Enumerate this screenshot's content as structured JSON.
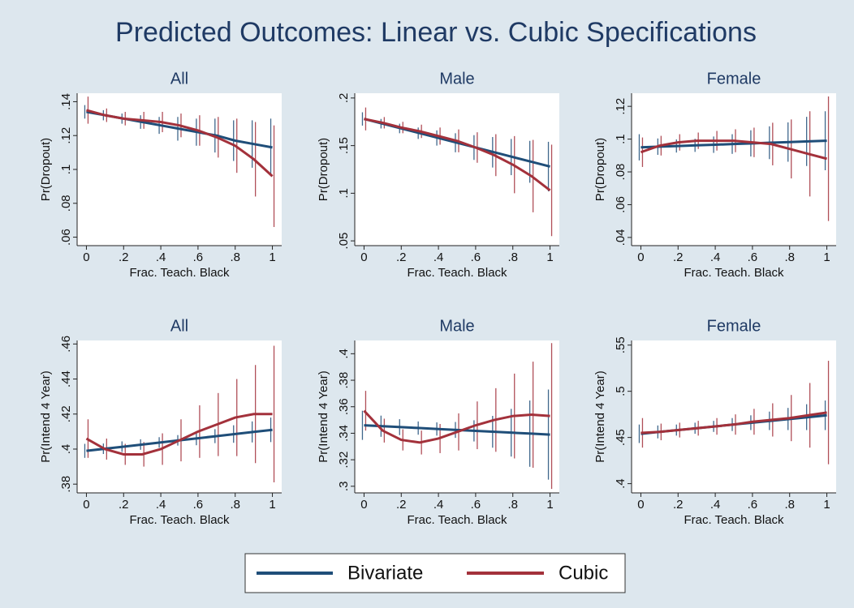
{
  "title": "Predicted Outcomes: Linear vs. Cubic Specifications",
  "chart_data": [
    {
      "type": "line",
      "title": "All",
      "xlabel": "Frac. Teach. Black",
      "ylabel": "Pr(Dropout)",
      "x": [
        0,
        0.1,
        0.2,
        0.3,
        0.4,
        0.5,
        0.6,
        0.7,
        0.8,
        0.9,
        1
      ],
      "xlim": [
        -0.05,
        1.05
      ],
      "xticks": [
        0,
        {
          "value": 0.2,
          "label": ".2"
        },
        {
          "value": 0.4,
          "label": ".4"
        },
        {
          "value": 0.6,
          "label": ".6"
        },
        {
          "value": 0.8,
          "label": ".8"
        },
        1
      ],
      "ylim": [
        0.055,
        0.145
      ],
      "yticks": [
        {
          "value": 0.06,
          "label": ".06"
        },
        {
          "value": 0.08,
          "label": ".08"
        },
        {
          "value": 0.1,
          "label": ".1"
        },
        {
          "value": 0.12,
          "label": ".12"
        },
        {
          "value": 0.14,
          "label": ".14"
        }
      ],
      "series": [
        {
          "name": "Bivariate",
          "color": "#1f4e79",
          "values": [
            0.134,
            0.132,
            0.13,
            0.128,
            0.126,
            0.124,
            0.122,
            0.12,
            0.117,
            0.115,
            0.113
          ],
          "errors": [
            0.004,
            0.003,
            0.003,
            0.004,
            0.005,
            0.007,
            0.008,
            0.01,
            0.012,
            0.014,
            0.017
          ]
        },
        {
          "name": "Cubic",
          "color": "#a3313b",
          "values": [
            0.135,
            0.132,
            0.13,
            0.129,
            0.128,
            0.126,
            0.123,
            0.119,
            0.114,
            0.106,
            0.096
          ],
          "errors": [
            0.008,
            0.004,
            0.004,
            0.005,
            0.006,
            0.007,
            0.009,
            0.012,
            0.016,
            0.022,
            0.03
          ]
        }
      ]
    },
    {
      "type": "line",
      "title": "Male",
      "xlabel": "Frac. Teach. Black",
      "ylabel": "Pr(Dropout)",
      "x": [
        0,
        0.1,
        0.2,
        0.3,
        0.4,
        0.5,
        0.6,
        0.7,
        0.8,
        0.9,
        1
      ],
      "xlim": [
        -0.05,
        1.05
      ],
      "xticks": [
        0,
        {
          "value": 0.2,
          "label": ".2"
        },
        {
          "value": 0.4,
          "label": ".4"
        },
        {
          "value": 0.6,
          "label": ".6"
        },
        {
          "value": 0.8,
          "label": ".8"
        },
        1
      ],
      "ylim": [
        0.045,
        0.205
      ],
      "yticks": [
        {
          "value": 0.05,
          "label": ".05"
        },
        {
          "value": 0.1,
          "label": ".1"
        },
        {
          "value": 0.15,
          "label": ".15"
        },
        {
          "value": 0.2,
          "label": ".2"
        }
      ],
      "series": [
        {
          "name": "Bivariate",
          "color": "#1f4e79",
          "values": [
            0.178,
            0.173,
            0.168,
            0.163,
            0.158,
            0.153,
            0.148,
            0.143,
            0.138,
            0.133,
            0.128
          ],
          "errors": [
            0.007,
            0.005,
            0.005,
            0.006,
            0.008,
            0.01,
            0.013,
            0.016,
            0.019,
            0.022,
            0.026
          ]
        },
        {
          "name": "Cubic",
          "color": "#a3313b",
          "values": [
            0.178,
            0.174,
            0.169,
            0.165,
            0.16,
            0.155,
            0.148,
            0.14,
            0.13,
            0.118,
            0.103
          ],
          "errors": [
            0.012,
            0.006,
            0.006,
            0.007,
            0.009,
            0.012,
            0.016,
            0.022,
            0.03,
            0.038,
            0.048
          ]
        }
      ]
    },
    {
      "type": "line",
      "title": "Female",
      "xlabel": "Frac. Teach. Black",
      "ylabel": "Pr(Dropout)",
      "x": [
        0,
        0.1,
        0.2,
        0.3,
        0.4,
        0.5,
        0.6,
        0.7,
        0.8,
        0.9,
        1
      ],
      "xlim": [
        -0.05,
        1.05
      ],
      "xticks": [
        0,
        {
          "value": 0.2,
          "label": ".2"
        },
        {
          "value": 0.4,
          "label": ".4"
        },
        {
          "value": 0.6,
          "label": ".6"
        },
        {
          "value": 0.8,
          "label": ".8"
        },
        1
      ],
      "ylim": [
        0.035,
        0.128
      ],
      "yticks": [
        {
          "value": 0.04,
          "label": ".04"
        },
        {
          "value": 0.06,
          "label": ".06"
        },
        {
          "value": 0.08,
          "label": ".08"
        },
        {
          "value": 0.1,
          "label": ".1"
        },
        {
          "value": 0.12,
          "label": ".12"
        }
      ],
      "series": [
        {
          "name": "Bivariate",
          "color": "#1f4e79",
          "values": [
            0.095,
            0.0954,
            0.0958,
            0.0962,
            0.0966,
            0.097,
            0.0974,
            0.0978,
            0.0982,
            0.0986,
            0.099
          ],
          "errors": [
            0.008,
            0.005,
            0.004,
            0.004,
            0.005,
            0.006,
            0.008,
            0.01,
            0.012,
            0.015,
            0.018
          ]
        },
        {
          "name": "Cubic",
          "color": "#a3313b",
          "values": [
            0.092,
            0.096,
            0.098,
            0.099,
            0.099,
            0.099,
            0.098,
            0.097,
            0.094,
            0.091,
            0.088
          ],
          "errors": [
            0.009,
            0.006,
            0.005,
            0.005,
            0.006,
            0.007,
            0.009,
            0.013,
            0.018,
            0.026,
            0.038
          ]
        }
      ]
    },
    {
      "type": "line",
      "title": "All",
      "xlabel": "Frac. Teach. Black",
      "ylabel": "Pr(Intend 4 Year)",
      "x": [
        0,
        0.1,
        0.2,
        0.3,
        0.4,
        0.5,
        0.6,
        0.7,
        0.8,
        0.9,
        1
      ],
      "xlim": [
        -0.05,
        1.05
      ],
      "xticks": [
        0,
        {
          "value": 0.2,
          "label": ".2"
        },
        {
          "value": 0.4,
          "label": ".4"
        },
        {
          "value": 0.6,
          "label": ".6"
        },
        {
          "value": 0.8,
          "label": ".8"
        },
        1
      ],
      "ylim": [
        0.375,
        0.462
      ],
      "yticks": [
        {
          "value": 0.38,
          "label": ".38"
        },
        {
          "value": 0.4,
          "label": ".4"
        },
        {
          "value": 0.42,
          "label": ".42"
        },
        {
          "value": 0.44,
          "label": ".44"
        },
        {
          "value": 0.46,
          "label": ".46"
        }
      ],
      "series": [
        {
          "name": "Bivariate",
          "color": "#1f4e79",
          "values": [
            0.399,
            0.4002,
            0.4014,
            0.4026,
            0.4038,
            0.405,
            0.4062,
            0.4074,
            0.4086,
            0.4098,
            0.411
          ],
          "errors": [
            0.004,
            0.003,
            0.003,
            0.003,
            0.003,
            0.003,
            0.004,
            0.004,
            0.005,
            0.006,
            0.007
          ]
        },
        {
          "name": "Cubic",
          "color": "#a3313b",
          "values": [
            0.406,
            0.4,
            0.397,
            0.397,
            0.4,
            0.405,
            0.41,
            0.414,
            0.418,
            0.42,
            0.42
          ],
          "errors": [
            0.011,
            0.006,
            0.006,
            0.007,
            0.009,
            0.012,
            0.015,
            0.018,
            0.022,
            0.028,
            0.039
          ]
        }
      ]
    },
    {
      "type": "line",
      "title": "Male",
      "xlabel": "Frac. Teach. Black",
      "ylabel": "Pr(Intend 4 Year)",
      "x": [
        0,
        0.1,
        0.2,
        0.3,
        0.4,
        0.5,
        0.6,
        0.7,
        0.8,
        0.9,
        1
      ],
      "xlim": [
        -0.05,
        1.05
      ],
      "xticks": [
        0,
        {
          "value": 0.2,
          "label": ".2"
        },
        {
          "value": 0.4,
          "label": ".4"
        },
        {
          "value": 0.6,
          "label": ".6"
        },
        {
          "value": 0.8,
          "label": ".8"
        },
        1
      ],
      "ylim": [
        0.295,
        0.41
      ],
      "yticks": [
        {
          "value": 0.3,
          "label": ".3"
        },
        {
          "value": 0.32,
          "label": ".32"
        },
        {
          "value": 0.34,
          "label": ".34"
        },
        {
          "value": 0.36,
          "label": ".36"
        },
        {
          "value": 0.38,
          "label": ".38"
        },
        {
          "value": 0.4,
          "label": ".4"
        }
      ],
      "series": [
        {
          "name": "Bivariate",
          "color": "#1f4e79",
          "values": [
            0.346,
            0.3453,
            0.3446,
            0.3439,
            0.3432,
            0.3425,
            0.3418,
            0.3411,
            0.3404,
            0.3397,
            0.339
          ],
          "errors": [
            0.011,
            0.008,
            0.006,
            0.005,
            0.005,
            0.006,
            0.008,
            0.012,
            0.018,
            0.025,
            0.034
          ]
        },
        {
          "name": "Cubic",
          "color": "#a3313b",
          "values": [
            0.357,
            0.342,
            0.335,
            0.333,
            0.336,
            0.341,
            0.346,
            0.35,
            0.353,
            0.354,
            0.353
          ],
          "errors": [
            0.015,
            0.009,
            0.008,
            0.009,
            0.011,
            0.014,
            0.018,
            0.024,
            0.032,
            0.04,
            0.055
          ]
        }
      ]
    },
    {
      "type": "line",
      "title": "Female",
      "xlabel": "Frac. Teach. Black",
      "ylabel": "Pr(Intend 4 Year)",
      "x": [
        0,
        0.1,
        0.2,
        0.3,
        0.4,
        0.5,
        0.6,
        0.7,
        0.8,
        0.9,
        1
      ],
      "xlim": [
        -0.05,
        1.05
      ],
      "xticks": [
        0,
        {
          "value": 0.2,
          "label": ".2"
        },
        {
          "value": 0.4,
          "label": ".4"
        },
        {
          "value": 0.6,
          "label": ".6"
        },
        {
          "value": 0.8,
          "label": ".8"
        },
        1
      ],
      "ylim": [
        0.39,
        0.555
      ],
      "yticks": [
        {
          "value": 0.4,
          "label": ".4"
        },
        {
          "value": 0.45,
          "label": ".45"
        },
        {
          "value": 0.5,
          "label": ".5"
        },
        {
          "value": 0.55,
          "label": ".55"
        }
      ],
      "series": [
        {
          "name": "Bivariate",
          "color": "#1f4e79",
          "values": [
            0.454,
            0.456,
            0.458,
            0.46,
            0.462,
            0.464,
            0.466,
            0.468,
            0.47,
            0.472,
            0.474
          ],
          "errors": [
            0.01,
            0.007,
            0.006,
            0.006,
            0.006,
            0.007,
            0.008,
            0.01,
            0.012,
            0.014,
            0.016
          ]
        },
        {
          "name": "Cubic",
          "color": "#a3313b",
          "values": [
            0.455,
            0.456,
            0.458,
            0.46,
            0.462,
            0.464,
            0.467,
            0.469,
            0.471,
            0.474,
            0.477
          ],
          "errors": [
            0.016,
            0.009,
            0.008,
            0.008,
            0.009,
            0.011,
            0.014,
            0.018,
            0.025,
            0.035,
            0.056
          ]
        }
      ]
    }
  ]
}
